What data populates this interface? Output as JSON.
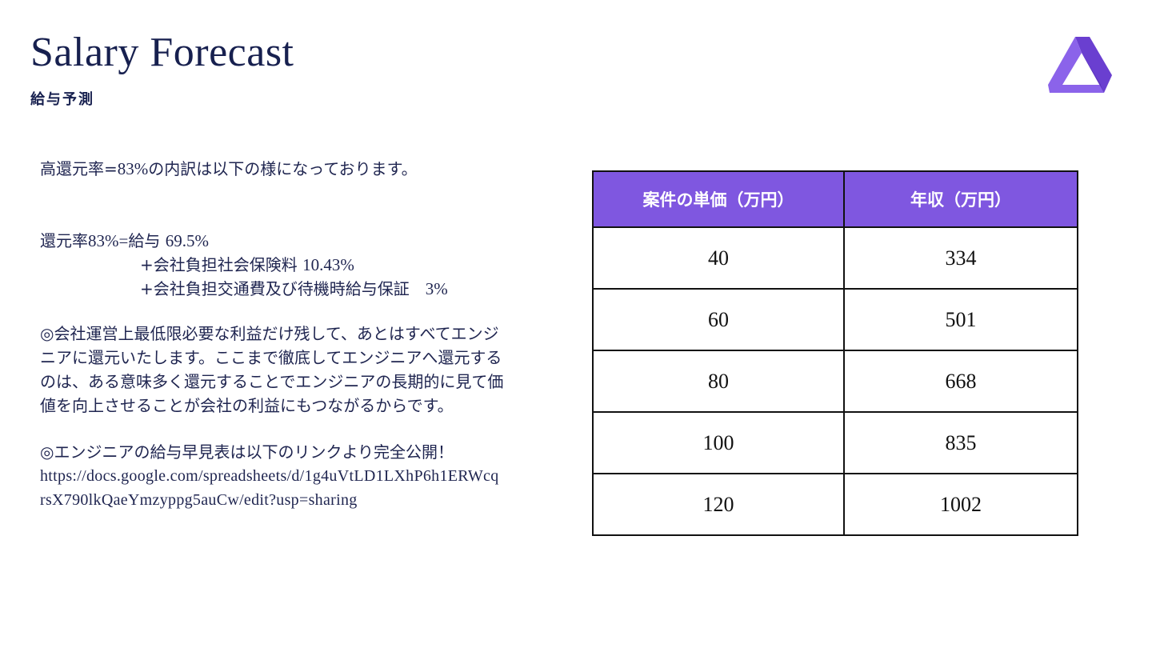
{
  "header": {
    "title": "Salary Forecast",
    "subtitle": "給与予測"
  },
  "logo": {
    "icon": "brand-logo-icon",
    "color": "#7f57e0"
  },
  "content": {
    "intro_a": "高還元率=",
    "intro_b": "83%",
    "intro_c": "の内訳は以下の様になっております。",
    "breakdown": {
      "line1_a": "還元率",
      "line1_b": "83%=",
      "line1_c": "給与 ",
      "line1_d": "69.5%",
      "line2_a": "+会社負担社会保険料 ",
      "line2_b": "10.43%",
      "line3_a": "+会社負担交通費及び待機時給与保証　",
      "line3_b": "3%"
    },
    "paragraph": "◎会社運営上最低限必要な利益だけ残して、あとはすべてエンジニアに還元いたします。ここまで徹底してエンジニアへ還元するのは、ある意味多く還元することでエンジニアの長期的に見て価値を向上させることが会社の利益にもつながるからです。",
    "link_intro": "◎エンジニアの給与早見表は以下のリンクより完全公開！",
    "link_url": "https://docs.google.com/spreadsheets/d/1g4uVtLD1LXhP6h1ERWcqrsX790lkQaeYmzyppg5auCw/edit?usp=sharing"
  },
  "table": {
    "headers": [
      "案件の単価（万円）",
      "年収（万円）"
    ],
    "header_color": "#7f57e0",
    "rows": [
      [
        "40",
        "334"
      ],
      [
        "60",
        "501"
      ],
      [
        "80",
        "668"
      ],
      [
        "100",
        "835"
      ],
      [
        "120",
        "1002"
      ]
    ]
  }
}
